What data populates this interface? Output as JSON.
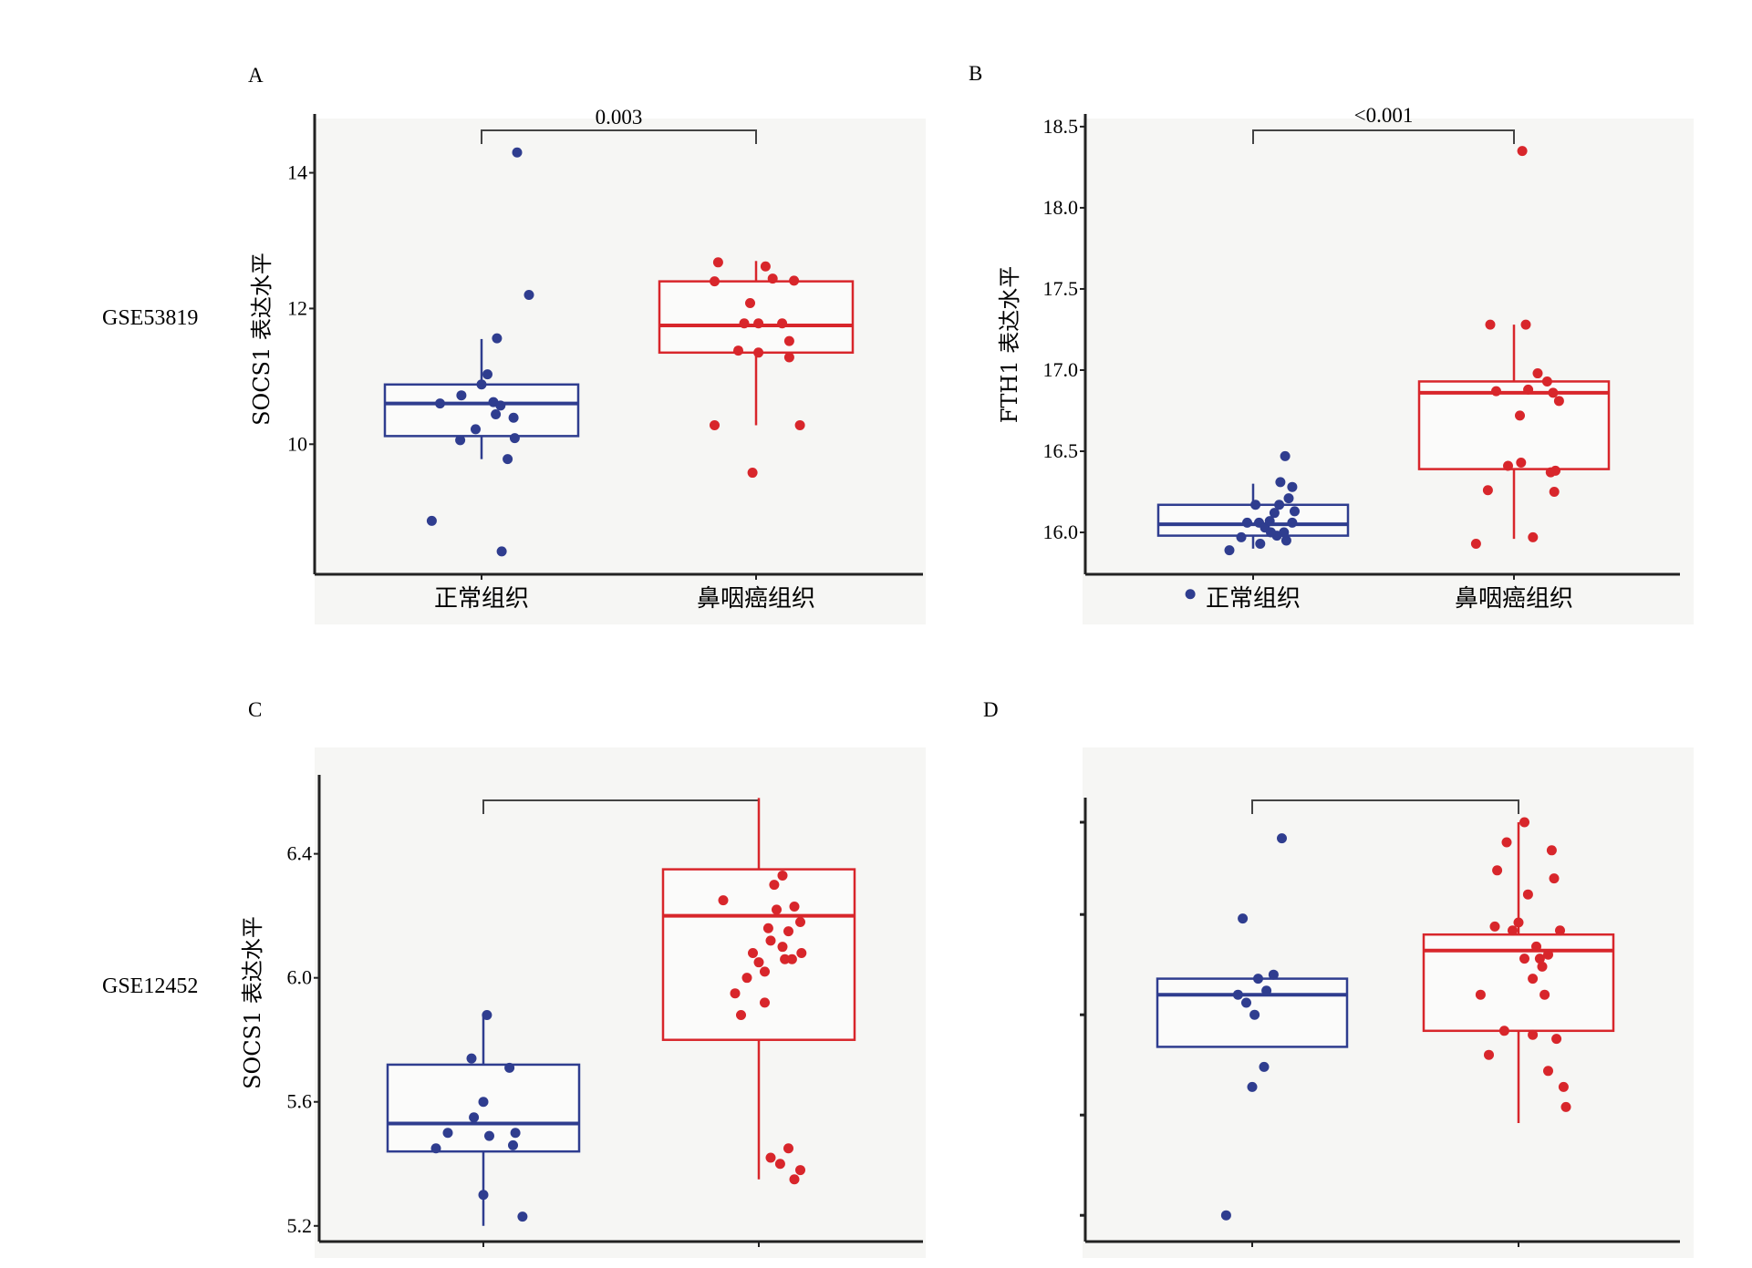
{
  "colors": {
    "normal": "#2f3d8f",
    "tumor": "#d8262b",
    "axis": "#222222",
    "panel_bg": "#f6f6f4"
  },
  "row_labels": [
    "GSE53819",
    "GSE12452"
  ],
  "chart_data": [
    {
      "id": "A",
      "type": "box",
      "panel_label": "A",
      "ylabel": "SOCS1 表达水平",
      "categories": [
        "正常组织",
        "鼻咽癌组织"
      ],
      "yticks": [
        "10",
        "12",
        "14"
      ],
      "ytick_values": [
        10,
        12,
        14
      ],
      "ylim": [
        8.15,
        14.8
      ],
      "pvalue": "0.003",
      "boxes": [
        {
          "q1": 10.12,
          "median": 10.6,
          "q3": 10.88,
          "whisker_low": 9.78,
          "whisker_high": 11.55
        },
        {
          "q1": 11.35,
          "median": 11.75,
          "q3": 12.4,
          "whisker_low": 10.28,
          "whisker_high": 12.7
        }
      ],
      "points": [
        [
          [
            -0.42,
            8.87
          ],
          [
            -0.17,
            10.72
          ],
          [
            -0.35,
            10.6
          ],
          [
            -0.18,
            10.06
          ],
          [
            -0.05,
            10.22
          ],
          [
            0,
            10.88
          ],
          [
            0.05,
            11.03
          ],
          [
            0.1,
            10.62
          ],
          [
            0.12,
            10.44
          ],
          [
            0.16,
            10.57
          ],
          [
            0.22,
            9.78
          ],
          [
            0.28,
            10.09
          ],
          [
            0.27,
            10.39
          ],
          [
            0.13,
            11.56
          ],
          [
            0.17,
            8.42
          ],
          [
            0.3,
            14.3
          ],
          [
            0.4,
            12.2
          ]
        ],
        [
          [
            -0.35,
            12.4
          ],
          [
            -0.35,
            10.28
          ],
          [
            -0.32,
            12.68
          ],
          [
            -0.15,
            11.38
          ],
          [
            -0.1,
            11.78
          ],
          [
            -0.05,
            12.08
          ],
          [
            0.02,
            11.78
          ],
          [
            0.02,
            11.35
          ],
          [
            0.08,
            12.62
          ],
          [
            0.14,
            12.44
          ],
          [
            0.22,
            11.78
          ],
          [
            0.28,
            11.52
          ],
          [
            0.28,
            11.28
          ],
          [
            0.32,
            12.41
          ],
          [
            0.37,
            10.28
          ],
          [
            -0.03,
            9.58
          ]
        ]
      ]
    },
    {
      "id": "B",
      "type": "box",
      "panel_label": "B",
      "ylabel": "FTH1 表达水平",
      "categories": [
        "正常组织",
        "鼻咽癌组织"
      ],
      "yticks": [
        "16.0",
        "16.5",
        "17.0",
        "17.5",
        "18.0",
        "18.5"
      ],
      "ytick_values": [
        16.0,
        16.5,
        17.0,
        17.5,
        18.0,
        18.5
      ],
      "ylim": [
        15.77,
        18.55
      ],
      "pvalue": "<0.001",
      "boxes": [
        {
          "q1": 15.98,
          "median": 16.05,
          "q3": 16.17,
          "whisker_low": 15.9,
          "whisker_high": 16.3
        },
        {
          "q1": 16.39,
          "median": 16.86,
          "q3": 16.93,
          "whisker_low": 15.96,
          "whisker_high": 17.28
        }
      ],
      "points": [
        [
          [
            -0.53,
            15.62
          ],
          [
            -0.2,
            15.89
          ],
          [
            -0.1,
            15.97
          ],
          [
            -0.05,
            16.06
          ],
          [
            0.02,
            16.17
          ],
          [
            0.05,
            16.06
          ],
          [
            0.06,
            15.93
          ],
          [
            0.1,
            16.03
          ],
          [
            0.14,
            16.07
          ],
          [
            0.18,
            16.12
          ],
          [
            0.2,
            15.98
          ],
          [
            0.22,
            16.17
          ],
          [
            0.23,
            16.31
          ],
          [
            0.27,
            16.47
          ],
          [
            0.33,
            16.28
          ],
          [
            0.28,
            15.95
          ],
          [
            0.33,
            16.06
          ],
          [
            0.15,
            16.0
          ],
          [
            0.26,
            16.0
          ],
          [
            0.3,
            16.21
          ],
          [
            0.35,
            16.13
          ]
        ],
        [
          [
            -0.32,
            15.93
          ],
          [
            -0.22,
            16.26
          ],
          [
            -0.15,
            16.87
          ],
          [
            -0.05,
            16.41
          ],
          [
            0.05,
            16.72
          ],
          [
            0.1,
            17.28
          ],
          [
            0.12,
            16.88
          ],
          [
            0.2,
            16.98
          ],
          [
            0.28,
            16.93
          ],
          [
            0.31,
            16.37
          ],
          [
            0.33,
            16.86
          ],
          [
            0.34,
            16.25
          ],
          [
            0.35,
            16.38
          ],
          [
            0.38,
            16.81
          ],
          [
            -0.2,
            17.28
          ],
          [
            0.06,
            16.43
          ],
          [
            0.16,
            15.97
          ],
          [
            0.07,
            18.35
          ]
        ]
      ]
    },
    {
      "id": "C",
      "type": "box",
      "panel_label": "C",
      "ylabel": "SOCS1 表达水平",
      "categories": [
        "",
        ""
      ],
      "yticks": [
        "5.2",
        "5.6",
        "6.0",
        "6.4"
      ],
      "ytick_values": [
        5.2,
        5.6,
        6.0,
        6.4
      ],
      "ylim": [
        5.17,
        6.64
      ],
      "pvalue": "",
      "boxes": [
        {
          "q1": 5.44,
          "median": 5.53,
          "q3": 5.72,
          "whisker_low": 5.2,
          "whisker_high": 5.88
        },
        {
          "q1": 5.8,
          "median": 6.2,
          "q3": 6.35,
          "whisker_low": 5.35,
          "whisker_high": 6.58
        }
      ],
      "points": [
        [
          [
            -0.4,
            5.45
          ],
          [
            -0.3,
            5.5
          ],
          [
            -0.1,
            5.74
          ],
          [
            0,
            5.6
          ],
          [
            0.05,
            5.49
          ],
          [
            0.22,
            5.71
          ],
          [
            0.25,
            5.46
          ],
          [
            0.27,
            5.5
          ],
          [
            0.33,
            5.23
          ],
          [
            0,
            5.3
          ],
          [
            -0.08,
            5.55
          ],
          [
            0.03,
            5.88
          ]
        ],
        [
          [
            -0.3,
            6.25
          ],
          [
            -0.05,
            6.08
          ],
          [
            0.05,
            6.02
          ],
          [
            0.08,
            6.16
          ],
          [
            0.1,
            6.12
          ],
          [
            0.15,
            6.22
          ],
          [
            0.2,
            6.1
          ],
          [
            0.22,
            6.06
          ],
          [
            0.25,
            6.15
          ],
          [
            0.3,
            6.23
          ],
          [
            0.35,
            6.18
          ],
          [
            0.36,
            6.08
          ],
          [
            0.1,
            5.42
          ],
          [
            0.18,
            5.4
          ],
          [
            0.25,
            5.45
          ],
          [
            0.3,
            5.35
          ],
          [
            0.35,
            5.38
          ],
          [
            -0.2,
            5.95
          ],
          [
            -0.15,
            5.88
          ],
          [
            0.05,
            5.92
          ],
          [
            0.0,
            6.05
          ],
          [
            0.13,
            6.3
          ],
          [
            0.2,
            6.33
          ],
          [
            0.28,
            6.06
          ],
          [
            -0.1,
            6.0
          ]
        ]
      ]
    },
    {
      "id": "D",
      "type": "box",
      "panel_label": "D",
      "ylabel": "",
      "categories": [
        "",
        ""
      ],
      "yticks": [],
      "ytick_values": [],
      "ylim": [
        0,
        1.05
      ],
      "pvalue": "",
      "boxes": [
        {
          "q1": 0.44,
          "median": 0.57,
          "q3": 0.61,
          "whisker_low": 0.44,
          "whisker_high": 0.61
        },
        {
          "q1": 0.48,
          "median": 0.68,
          "q3": 0.72,
          "whisker_low": 0.25,
          "whisker_high": 1.0
        }
      ],
      "points": [
        [
          [
            -0.22,
            0.02
          ],
          [
            -0.08,
            0.76
          ],
          [
            -0.05,
            0.55
          ],
          [
            0.0,
            0.34
          ],
          [
            0.02,
            0.52
          ],
          [
            0.05,
            0.61
          ],
          [
            0.1,
            0.39
          ],
          [
            0.12,
            0.58
          ],
          [
            0.18,
            0.62
          ],
          [
            0.25,
            0.96
          ],
          [
            -0.12,
            0.57
          ]
        ],
        [
          [
            -0.32,
            0.57
          ],
          [
            -0.25,
            0.42
          ],
          [
            -0.18,
            0.88
          ],
          [
            -0.12,
            0.48
          ],
          [
            -0.05,
            0.73
          ],
          [
            0,
            0.75
          ],
          [
            0.05,
            0.66
          ],
          [
            0.08,
            0.82
          ],
          [
            0.12,
            0.61
          ],
          [
            0.15,
            0.69
          ],
          [
            0.2,
            0.64
          ],
          [
            0.22,
            0.57
          ],
          [
            0.25,
            0.38
          ],
          [
            0.28,
            0.93
          ],
          [
            0.32,
            0.46
          ],
          [
            0.35,
            0.73
          ],
          [
            0.38,
            0.34
          ],
          [
            0.4,
            0.29
          ],
          [
            0.12,
            0.47
          ],
          [
            0.3,
            0.86
          ],
          [
            -0.1,
            0.95
          ],
          [
            0.05,
            1.0
          ],
          [
            0.18,
            0.66
          ],
          [
            0.25,
            0.67
          ],
          [
            -0.2,
            0.74
          ]
        ]
      ]
    }
  ]
}
